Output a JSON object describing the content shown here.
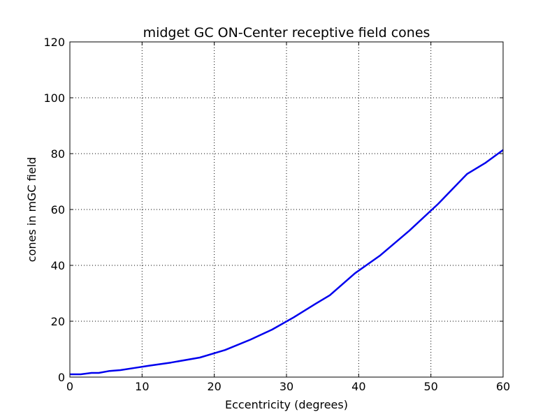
{
  "chart_data": {
    "type": "line",
    "title": "midget GC ON-Center receptive field cones",
    "xlabel": "Eccentricity (degrees)",
    "ylabel": "cones in mGC field",
    "xlim": [
      0,
      60
    ],
    "ylim": [
      0,
      120
    ],
    "xticks": [
      0,
      10,
      20,
      30,
      40,
      50,
      60
    ],
    "yticks": [
      0,
      20,
      40,
      60,
      80,
      100,
      120
    ],
    "grid": true,
    "series": [
      {
        "color": "#0000ee",
        "x": [
          0,
          1.5,
          3,
          4,
          5.5,
          7,
          9,
          11,
          14,
          18,
          21.5,
          25,
          28,
          31,
          34,
          36,
          39.5,
          43,
          47,
          51,
          55,
          57.5,
          60
        ],
        "y": [
          1,
          1,
          1.5,
          1.5,
          2.2,
          2.5,
          3.3,
          4.1,
          5.2,
          7,
          9.7,
          13.4,
          17,
          21.4,
          26.2,
          29.3,
          37.2,
          43.6,
          52.4,
          62,
          72.7,
          76.6,
          81.3
        ]
      }
    ]
  }
}
